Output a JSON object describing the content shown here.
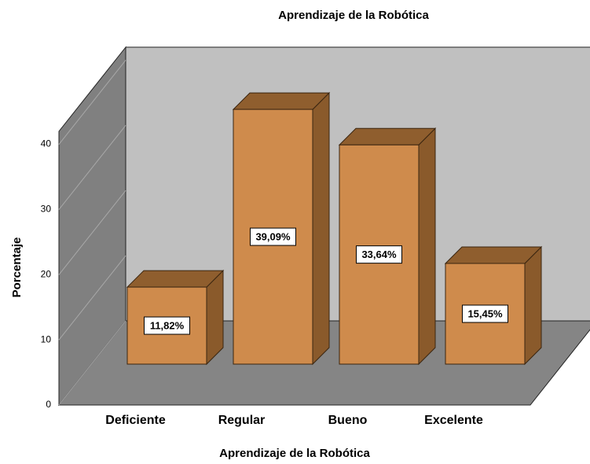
{
  "chart_data": {
    "type": "bar",
    "title": "Aprendizaje de la Robótica",
    "x_label": "Aprendizaje de la Robótica",
    "y_label": "Porcentaje",
    "categories": [
      "Deficiente",
      "Regular",
      "Bueno",
      "Excelente"
    ],
    "values": [
      11.82,
      39.09,
      33.64,
      15.45
    ],
    "value_labels": [
      "11,82%",
      "39,09%",
      "33,64%",
      "15,45%"
    ],
    "color": "#cf8b4c",
    "ylim": [
      0,
      42
    ],
    "yticks": [
      0,
      10,
      20,
      30,
      40
    ],
    "grid": true
  }
}
